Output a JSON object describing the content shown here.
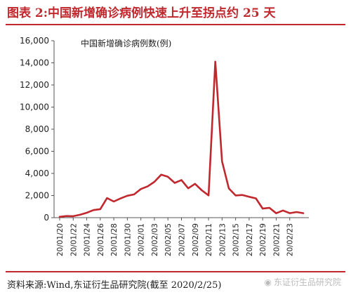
{
  "header": {
    "title": "图表 2:中国新增确诊病例快速上升至拐点约 25 天"
  },
  "footer": {
    "source": "资料来源:Wind,东证衍生品研究院(截至 2020/2/25)",
    "watermark": "东证衍生品研究院",
    "watermark_icon": "wechat-icon"
  },
  "chart_data": {
    "type": "line",
    "title": "中国新增确诊病例数(例)",
    "xlabel": "",
    "ylabel": "",
    "ylim": [
      0,
      16000
    ],
    "yticks": [
      0,
      2000,
      4000,
      6000,
      8000,
      10000,
      12000,
      14000,
      16000
    ],
    "ytick_labels": [
      "0",
      "2,000",
      "4,000",
      "6,000",
      "8,000",
      "10,000",
      "12,000",
      "14,000",
      "16,000"
    ],
    "xtick_labels": [
      "20/01/20",
      "20/01/22",
      "20/01/24",
      "20/01/26",
      "20/01/28",
      "20/01/30",
      "20/02/01",
      "20/02/03",
      "20/02/05",
      "20/02/07",
      "20/02/09",
      "20/02/11",
      "20/02/13",
      "20/02/15",
      "20/02/17",
      "20/02/19",
      "20/02/21",
      "20/02/23"
    ],
    "x": [
      "20/01/20",
      "20/01/21",
      "20/01/22",
      "20/01/23",
      "20/01/24",
      "20/01/25",
      "20/01/26",
      "20/01/27",
      "20/01/28",
      "20/01/29",
      "20/01/30",
      "20/01/31",
      "20/02/01",
      "20/02/02",
      "20/02/03",
      "20/02/04",
      "20/02/05",
      "20/02/06",
      "20/02/07",
      "20/02/08",
      "20/02/09",
      "20/02/10",
      "20/02/11",
      "20/02/12",
      "20/02/13",
      "20/02/14",
      "20/02/15",
      "20/02/16",
      "20/02/17",
      "20/02/18",
      "20/02/19",
      "20/02/20",
      "20/02/21",
      "20/02/22",
      "20/02/23",
      "20/02/24",
      "20/02/25"
    ],
    "series": [
      {
        "values": [
          77,
          149,
          131,
          259,
          444,
          688,
          769,
          1771,
          1459,
          1737,
          1981,
          2099,
          2590,
          2829,
          3235,
          3887,
          3694,
          3143,
          3399,
          2656,
          3062,
          2478,
          2015,
          14108,
          5090,
          2641,
          2009,
          2048,
          1886,
          1749,
          820,
          889,
          397,
          648,
          409,
          508,
          406
        ],
        "color": "#c0282e"
      }
    ],
    "grid": false,
    "legend": "none"
  }
}
